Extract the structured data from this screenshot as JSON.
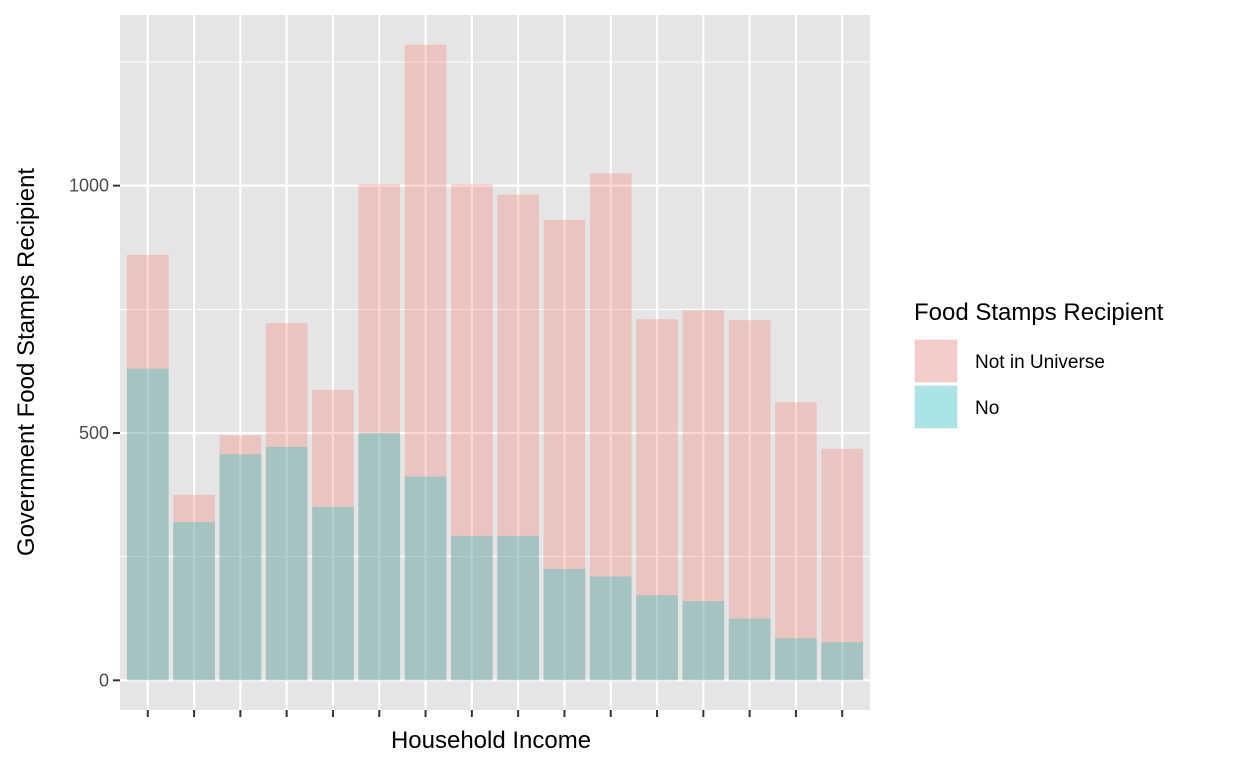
{
  "chart_data": {
    "type": "bar",
    "stacked": false,
    "overlay": true,
    "title": "",
    "xlabel": "Household Income",
    "ylabel": "Government Food Stamps Recipient",
    "categories": [
      "",
      "",
      "",
      "",
      "",
      "",
      "",
      "",
      "",
      "",
      "",
      "",
      "",
      "",
      "",
      ""
    ],
    "yticks": [
      0,
      500,
      1000
    ],
    "ylim": [
      -60,
      1345
    ],
    "grid": true,
    "legend": {
      "title": "Food Stamps Recipient",
      "position": "right",
      "entries": [
        {
          "label": "Not in Universe",
          "color": "#f8766d"
        },
        {
          "label": "No",
          "color": "#00bfc4"
        }
      ]
    },
    "series": [
      {
        "name": "Not in Universe",
        "color": "#f8766d",
        "values": [
          860,
          375,
          495,
          722,
          587,
          1003,
          1285,
          1003,
          982,
          931,
          1025,
          730,
          748,
          728,
          562,
          468
        ]
      },
      {
        "name": "No",
        "color": "#00bfc4",
        "values": [
          630,
          320,
          457,
          472,
          350,
          500,
          412,
          292,
          292,
          225,
          210,
          172,
          160,
          125,
          85,
          77
        ]
      }
    ]
  }
}
